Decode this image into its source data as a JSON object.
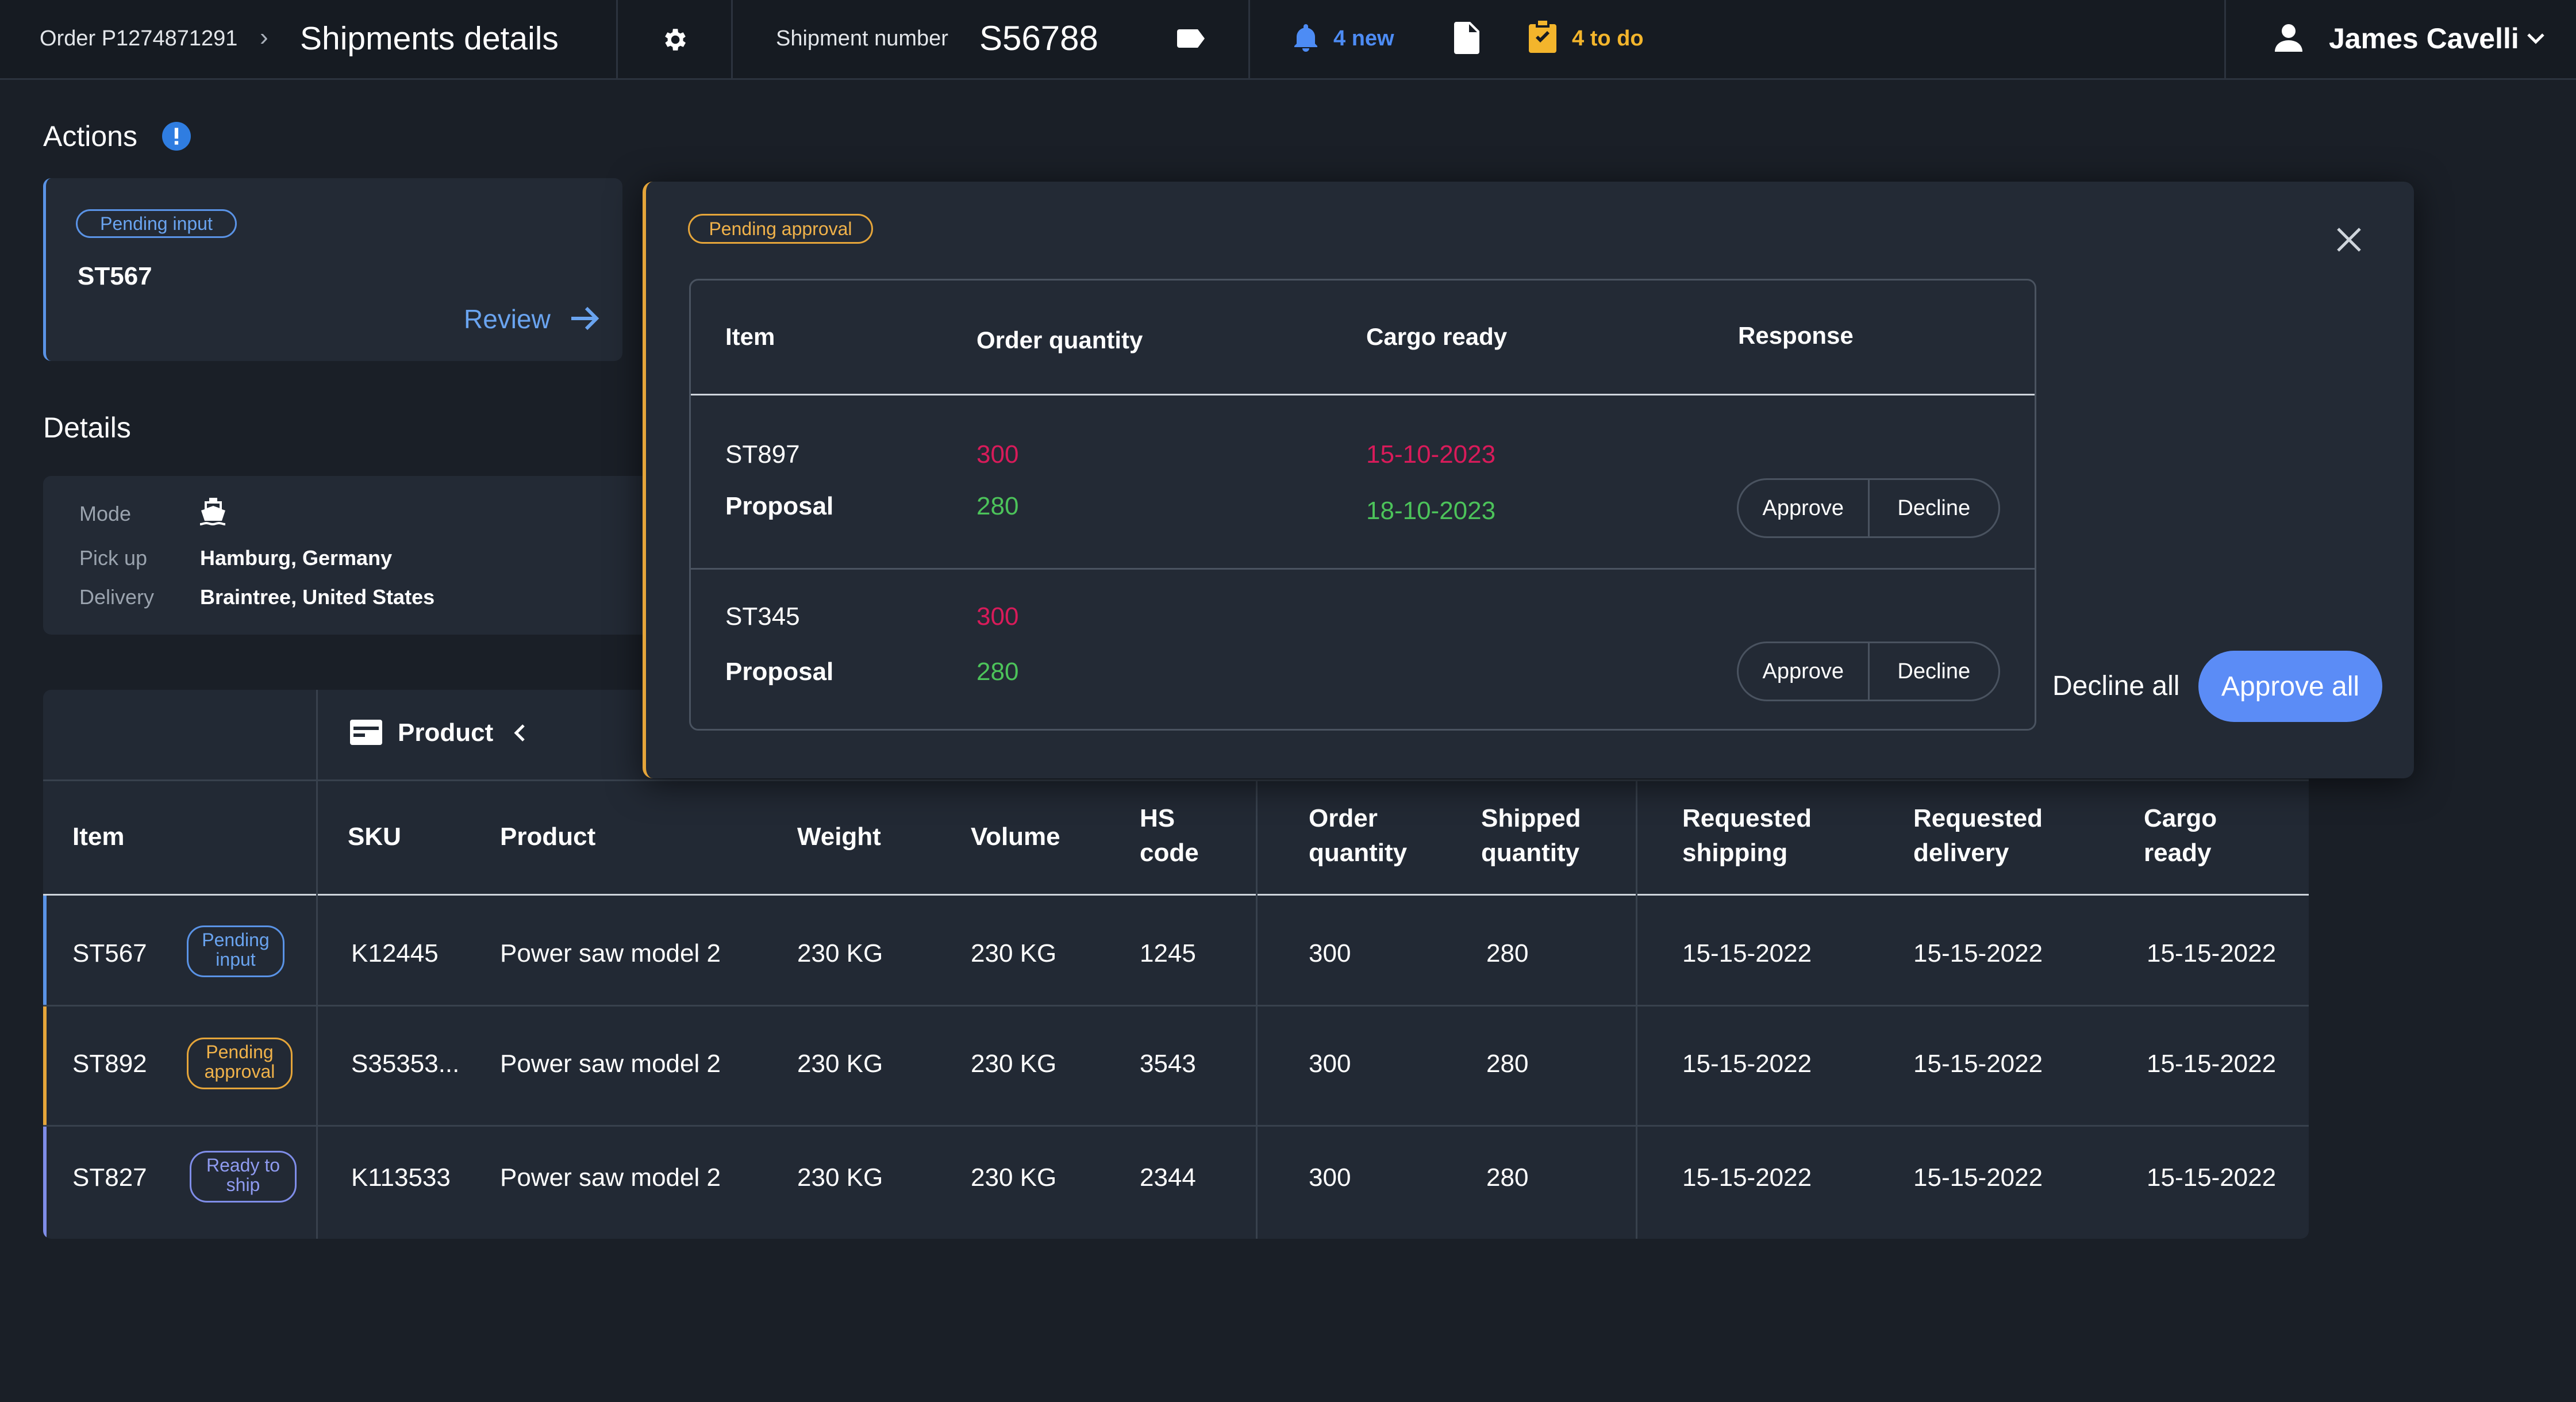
{
  "header": {
    "order": "Order P1274871291",
    "title": "Shipments details",
    "shipment_label": "Shipment number",
    "shipment_value": "S56788",
    "notifications": "4 new",
    "todo": "4 to do",
    "user": "James Cavelli"
  },
  "actions": {
    "title": "Actions",
    "card": {
      "badge": "Pending input",
      "item": "ST567",
      "link": "Review"
    }
  },
  "details": {
    "title": "Details",
    "rows": [
      {
        "label": "Mode",
        "value": ""
      },
      {
        "label": "Pick up",
        "value": "Hamburg, Germany"
      },
      {
        "label": "Delivery",
        "value": "Braintree, United States"
      }
    ]
  },
  "table": {
    "group_header": "Product",
    "columns": [
      "Item",
      "SKU",
      "Product",
      "Weight",
      "Volume",
      "HS code",
      "Order quantity",
      "Shipped quantity",
      "Requested shipping",
      "Requested delivery",
      "Cargo ready"
    ],
    "rows": [
      {
        "item": "ST567",
        "status": "Pending input",
        "sku": "K12445",
        "product": "Power saw model 2",
        "weight": "230 KG",
        "volume": "230 KG",
        "hs": "1245",
        "order_qty": "300",
        "shipped_qty": "280",
        "req_ship": "15-15-2022",
        "req_del": "15-15-2022",
        "cargo": "15-15-2022"
      },
      {
        "item": "ST892",
        "status": "Pending approval",
        "sku": "S35353...",
        "product": "Power saw model 2",
        "weight": "230 KG",
        "volume": "230 KG",
        "hs": "3543",
        "order_qty": "300",
        "shipped_qty": "280",
        "req_ship": "15-15-2022",
        "req_del": "15-15-2022",
        "cargo": "15-15-2022"
      },
      {
        "item": "ST827",
        "status": "Ready to ship",
        "sku": "K113533",
        "product": "Power saw model 2",
        "weight": "230 KG",
        "volume": "230 KG",
        "hs": "2344",
        "order_qty": "300",
        "shipped_qty": "280",
        "req_ship": "15-15-2022",
        "req_del": "15-15-2022",
        "cargo": "15-15-2022"
      }
    ]
  },
  "popup": {
    "badge": "Pending approval",
    "columns": [
      "Item",
      "Order quantity",
      "Cargo ready",
      "Response"
    ],
    "rows": [
      {
        "item": "ST897",
        "order_qty": "300",
        "cargo": "15-10-2023",
        "proposal_label": "Proposal",
        "proposal_qty": "280",
        "proposal_cargo": "18-10-2023",
        "approve": "Approve",
        "decline": "Decline"
      },
      {
        "item": "ST345",
        "order_qty": "300",
        "cargo": "",
        "proposal_label": "Proposal",
        "proposal_qty": "280",
        "proposal_cargo": "",
        "approve": "Approve",
        "decline": "Decline"
      }
    ],
    "decline_all": "Decline all",
    "approve_all": "Approve all"
  },
  "colors": {
    "background": "#1a1f27",
    "card": "#232a35",
    "accent": "#5b8cf6",
    "warning": "#e5a53a",
    "danger": "#d81b5a",
    "success": "#4cc35a"
  }
}
